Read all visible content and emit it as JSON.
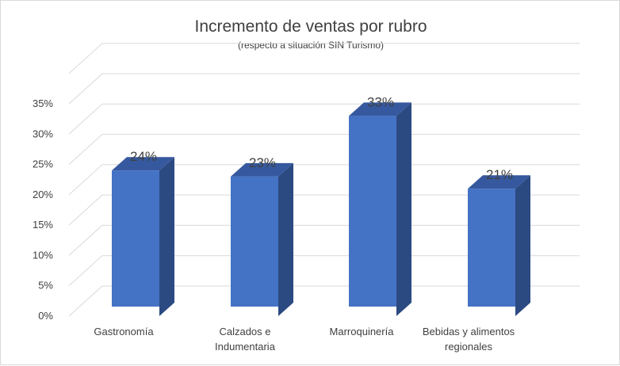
{
  "chart_data": {
    "type": "bar",
    "title": "Incremento de ventas por rubro",
    "subtitle": "(respecto a situación SIN Turismo)",
    "categories": [
      [
        "Gastronomía"
      ],
      [
        "Calzados e",
        "Indumentaria"
      ],
      [
        "Marroquinería"
      ],
      [
        "Bebidas y alimentos",
        "regionales"
      ]
    ],
    "values": [
      24,
      23,
      33,
      21
    ],
    "data_labels": [
      "24%",
      "23%",
      "33%",
      "21%"
    ],
    "y_ticks": [
      "0%",
      "5%",
      "10%",
      "15%",
      "20%",
      "25%",
      "30%",
      "35%"
    ],
    "ylim": [
      0,
      35
    ],
    "grid": true,
    "legend": "none",
    "three_d": true,
    "colors": {
      "bar_front": "#4472c4",
      "bar_side": "#2c4a82",
      "bar_top": "#36589e",
      "gridline": "#d9d9d9",
      "text": "#404040"
    }
  }
}
